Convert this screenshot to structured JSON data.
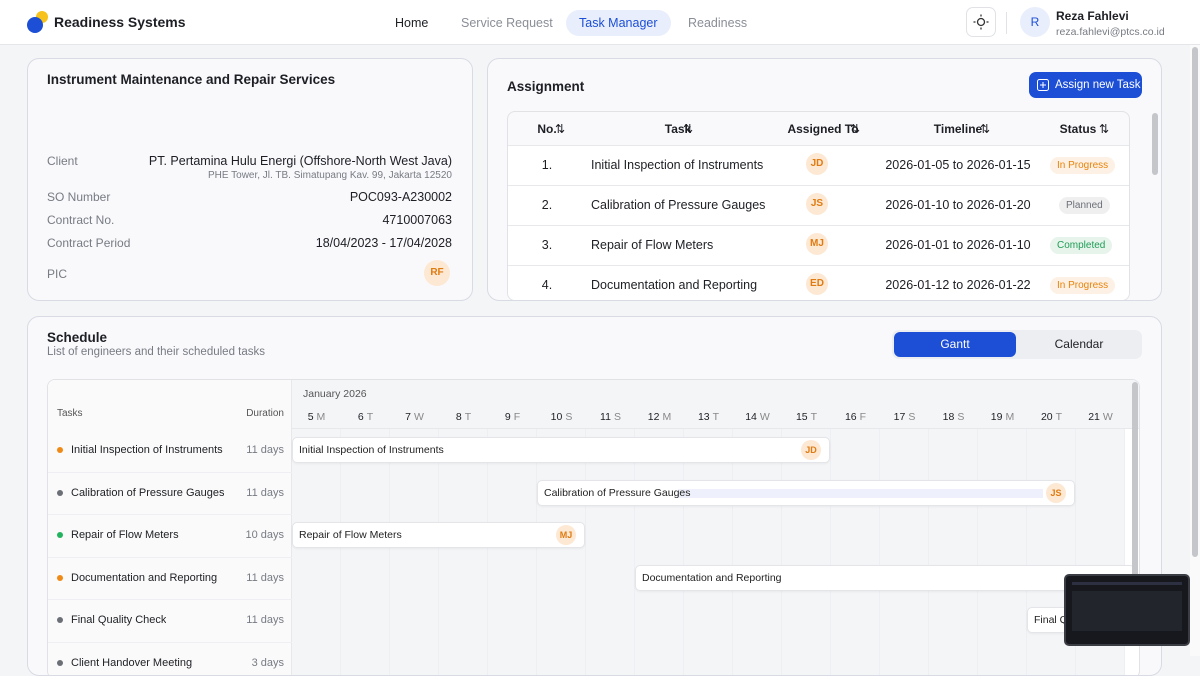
{
  "header": {
    "brand": "Readiness Systems",
    "nav": [
      "Home",
      "Service Request",
      "Task Manager",
      "Readiness"
    ],
    "user": {
      "initial": "R",
      "name": "Reza Fahlevi",
      "email": "reza.fahlevi@ptcs.co.id"
    }
  },
  "info": {
    "title": "Instrument Maintenance and Repair Services",
    "client": {
      "label": "Client",
      "value": "PT. Pertamina Hulu Energi (Offshore-North West Java)",
      "address": "PHE Tower, Jl. TB. Simatupang Kav. 99, Jakarta 12520"
    },
    "fields": [
      {
        "label": "SO Number",
        "value": "POC093-A230002"
      },
      {
        "label": "Contract No.",
        "value": "4710007063"
      },
      {
        "label": "Contract Period",
        "value": "18/04/2023 - 17/04/2028"
      }
    ],
    "pic": {
      "label": "PIC",
      "value": "RF"
    }
  },
  "assignment": {
    "title": "Assignment",
    "button": "Assign new Task",
    "columns": [
      "No.",
      "Task",
      "Assigned To",
      "Timeline",
      "Status"
    ],
    "rows": [
      {
        "no": "1.",
        "task": "Initial Inspection of Instruments",
        "assignee": "JD",
        "timeline": "2026-01-05 to 2026-01-15",
        "status": "In Progress",
        "status_color": "#e8830c"
      },
      {
        "no": "2.",
        "task": "Calibration of Pressure Gauges",
        "assignee": "JS",
        "timeline": "2026-01-10 to 2026-01-20",
        "status": "Planned",
        "status_color": "#6b6f76"
      },
      {
        "no": "3.",
        "task": "Repair of Flow Meters",
        "assignee": "MJ",
        "timeline": "2026-01-01 to 2026-01-10",
        "status": "Completed",
        "status_color": "#1f9d55"
      },
      {
        "no": "4.",
        "task": "Documentation and Reporting",
        "assignee": "ED",
        "timeline": "2026-01-12 to 2026-01-22",
        "status": "In Progress",
        "status_color": "#e8830c"
      }
    ]
  },
  "schedule": {
    "title": "Schedule",
    "subtitle": "List of engineers and their scheduled tasks",
    "views": [
      "Gantt",
      "Calendar"
    ],
    "month": "January 2026",
    "task_header": "Tasks",
    "duration_header": "Duration",
    "days": [
      {
        "num": "5",
        "dow": "M"
      },
      {
        "num": "6",
        "dow": "T"
      },
      {
        "num": "7",
        "dow": "W"
      },
      {
        "num": "8",
        "dow": "T"
      },
      {
        "num": "9",
        "dow": "F"
      },
      {
        "num": "10",
        "dow": "S"
      },
      {
        "num": "11",
        "dow": "S"
      },
      {
        "num": "12",
        "dow": "M"
      },
      {
        "num": "13",
        "dow": "T"
      },
      {
        "num": "14",
        "dow": "W"
      },
      {
        "num": "15",
        "dow": "T"
      },
      {
        "num": "16",
        "dow": "F"
      },
      {
        "num": "17",
        "dow": "S"
      },
      {
        "num": "18",
        "dow": "S"
      },
      {
        "num": "19",
        "dow": "M"
      },
      {
        "num": "20",
        "dow": "T"
      },
      {
        "num": "21",
        "dow": "W"
      }
    ],
    "tasks": [
      {
        "name": "Initial Inspection of Instruments",
        "duration": "11 days",
        "dot_color": "#f08a16",
        "initials": "JD"
      },
      {
        "name": "Calibration of Pressure Gauges",
        "duration": "11 days",
        "dot_color": "#6b6f76",
        "initials": "JS"
      },
      {
        "name": "Repair of Flow Meters",
        "duration": "10 days",
        "dot_color": "#22b35e",
        "initials": "MJ"
      },
      {
        "name": "Documentation and Reporting",
        "duration": "11 days",
        "dot_color": "#f08a16",
        "initials": null
      },
      {
        "name": "Final Quality Check",
        "duration": "11 days",
        "dot_color": "#6b6f76",
        "initials": null
      },
      {
        "name": "Client Handover Meeting",
        "duration": "3 days",
        "dot_color": "#6b6f76",
        "initials": null
      }
    ],
    "bar_label_5": "Final Q"
  }
}
